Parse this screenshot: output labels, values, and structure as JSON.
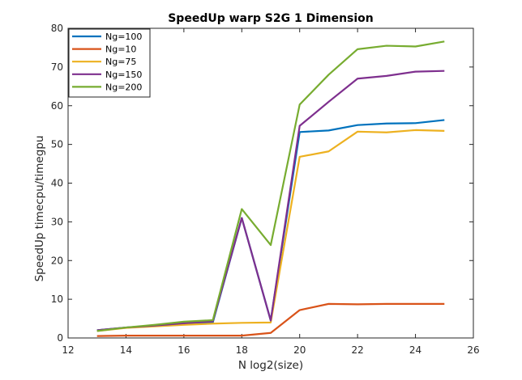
{
  "chart_data": {
    "type": "line",
    "title": "SpeedUp warp S2G 1 Dimension",
    "xlabel": "N log2(size)",
    "ylabel": "SpeedUp timecpu/timegpu",
    "xlim": [
      12,
      26
    ],
    "ylim": [
      0,
      80
    ],
    "xticks": [
      12,
      14,
      16,
      18,
      20,
      22,
      24,
      26
    ],
    "yticks": [
      0,
      10,
      20,
      30,
      40,
      50,
      60,
      70,
      80
    ],
    "grid": false,
    "legend_position": "top-left",
    "x": [
      13,
      14,
      15,
      16,
      17,
      18,
      19,
      20,
      21,
      22,
      23,
      24,
      25
    ],
    "series": [
      {
        "name": "Ng=100",
        "color": "#0072BD",
        "values": [
          2.0,
          2.7,
          3.2,
          3.6,
          4.0,
          31.0,
          4.5,
          53.2,
          53.6,
          55.0,
          55.4,
          55.5,
          56.3
        ]
      },
      {
        "name": "Ng=10",
        "color": "#D95319",
        "values": [
          0.5,
          0.6,
          0.6,
          0.6,
          0.6,
          0.6,
          1.3,
          7.2,
          8.8,
          8.7,
          8.8,
          8.8,
          8.8
        ]
      },
      {
        "name": "Ng=75",
        "color": "#EDB120",
        "values": [
          1.8,
          2.6,
          3.0,
          3.4,
          3.7,
          3.9,
          4.0,
          46.8,
          48.2,
          53.3,
          53.1,
          53.7,
          53.5
        ]
      },
      {
        "name": "Ng=150",
        "color": "#7E2F8E",
        "values": [
          2.0,
          2.7,
          3.2,
          3.8,
          4.3,
          31.0,
          4.5,
          54.8,
          61.0,
          67.0,
          67.7,
          68.8,
          69.0
        ]
      },
      {
        "name": "Ng=200",
        "color": "#77AC30",
        "values": [
          1.8,
          2.7,
          3.4,
          4.2,
          4.6,
          33.3,
          24.0,
          60.3,
          68.0,
          74.6,
          75.5,
          75.3,
          76.6
        ]
      }
    ]
  }
}
